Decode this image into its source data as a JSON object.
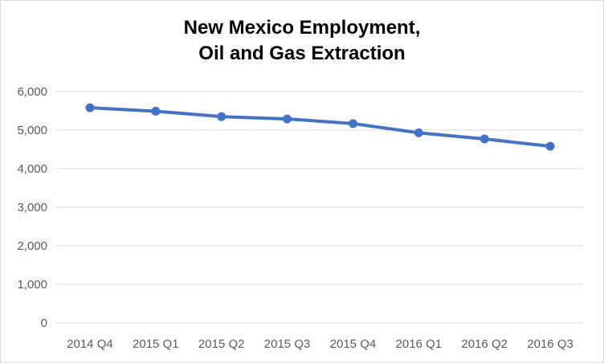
{
  "chart_data": {
    "type": "line",
    "title_lines": [
      "New Mexico Employment,",
      "Oil and Gas Extraction"
    ],
    "xlabel": "",
    "ylabel": "",
    "categories": [
      "2014 Q4",
      "2015 Q1",
      "2015 Q2",
      "2015 Q3",
      "2015 Q4",
      "2016 Q1",
      "2016 Q2",
      "2016 Q3"
    ],
    "series": [
      {
        "values": [
          5580,
          5490,
          5350,
          5290,
          5170,
          4930,
          4770,
          4580
        ]
      }
    ],
    "ylim": [
      0,
      6000
    ],
    "yticks": [
      0,
      1000,
      2000,
      3000,
      4000,
      5000,
      6000
    ],
    "ytick_labels": [
      "0",
      "1,000",
      "2,000",
      "3,000",
      "4,000",
      "5,000",
      "6,000"
    ],
    "grid": true,
    "legend": "none",
    "colors": {
      "line": "#4472C4",
      "grid": "#d9d9d9",
      "tick_text": "#595959"
    }
  }
}
